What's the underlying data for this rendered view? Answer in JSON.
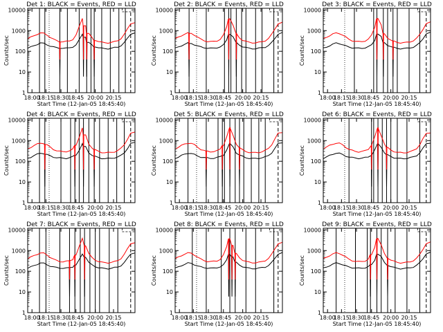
{
  "chart_data": {
    "type": "line",
    "layout_grid": "3x3",
    "x_ticks": [
      "18:00",
      "18:15",
      "18:30",
      "18:45",
      "20:00",
      "20:15"
    ],
    "y_ticks": [
      "1",
      "10",
      "100",
      "1000",
      "10000"
    ],
    "y_scale": "log",
    "ylim": [
      1,
      12000
    ],
    "xlim": [
      0,
      1
    ],
    "ylabel": "Counts/sec",
    "xlabel": "Start Time (12-Jan-05 18:45:40)",
    "series_colors": {
      "events": "#000000",
      "lld": "#ff0000"
    },
    "x_points": [
      0.0,
      0.03,
      0.06,
      0.09,
      0.12,
      0.15,
      0.18,
      0.21,
      0.24,
      0.27,
      0.3,
      0.33,
      0.36,
      0.39,
      0.42,
      0.45,
      0.48,
      0.51,
      0.54,
      0.57,
      0.6,
      0.63,
      0.66,
      0.69,
      0.72,
      0.75,
      0.78,
      0.81,
      0.84,
      0.87,
      0.9,
      0.93,
      0.96,
      1.0
    ],
    "red_base": [
      400,
      480,
      580,
      680,
      760,
      740,
      620,
      480,
      380,
      330,
      300,
      290,
      300,
      320,
      380,
      600,
      1500,
      4000,
      1800,
      700,
      450,
      350,
      300,
      270,
      260,
      260,
      270,
      290,
      330,
      420,
      650,
      1200,
      2200,
      2500
    ],
    "black_base": [
      140,
      160,
      190,
      220,
      250,
      240,
      210,
      180,
      160,
      150,
      145,
      140,
      140,
      150,
      165,
      200,
      350,
      700,
      500,
      260,
      200,
      170,
      150,
      140,
      135,
      135,
      140,
      150,
      160,
      190,
      260,
      420,
      700,
      800
    ],
    "panels": [
      {
        "title": "Det 1: BLACK = Events, RED = LLD",
        "vlines": [
          0.11,
          0.16,
          0.3,
          0.37,
          0.48,
          0.55,
          0.59,
          0.62,
          0.69,
          0.77,
          0.85,
          0.91
        ],
        "dips": [
          0.3,
          0.52,
          0.55,
          0.62
        ]
      },
      {
        "title": "Det 2: BLACK = Events, RED = LLD",
        "vlines": [
          0.13,
          0.29,
          0.46,
          0.5,
          0.52,
          0.57,
          0.62,
          0.66,
          0.75,
          0.81,
          0.92
        ],
        "dips": [
          0.13,
          0.5,
          0.57
        ]
      },
      {
        "title": "Det 3: BLACK = Events, RED = LLD",
        "vlines": [
          0.29,
          0.47,
          0.5,
          0.56,
          0.6,
          0.65,
          0.69,
          0.8,
          0.9
        ],
        "dips": [
          0.5,
          0.56,
          0.65
        ]
      },
      {
        "title": "Det 4: BLACK = Events, RED = LLD",
        "vlines": [
          0.11,
          0.16,
          0.31,
          0.4,
          0.44,
          0.48,
          0.52,
          0.57,
          0.62,
          0.67,
          0.75,
          0.83,
          0.9
        ],
        "dips": [
          0.16,
          0.44,
          0.52,
          0.62
        ]
      },
      {
        "title": "Det 5: BLACK = Events, RED = LLD",
        "vlines": [
          0.12,
          0.29,
          0.4,
          0.44,
          0.46,
          0.51,
          0.56,
          0.6,
          0.64,
          0.71,
          0.78,
          0.84
        ],
        "dips": [
          0.29,
          0.44,
          0.51,
          0.6
        ]
      },
      {
        "title": "Det 6: BLACK = Events, RED = LLD",
        "vlines": [
          0.24,
          0.45,
          0.47,
          0.51,
          0.55,
          0.59,
          0.63,
          0.69,
          0.78,
          0.9
        ],
        "dips": [
          0.45,
          0.51,
          0.59
        ]
      },
      {
        "title": "Det 7: BLACK = Events, RED = LLD",
        "vlines": [
          0.11,
          0.17,
          0.3,
          0.39,
          0.44,
          0.49,
          0.53,
          0.58,
          0.63,
          0.67,
          0.76,
          0.84
        ],
        "dips": [
          0.39,
          0.44,
          0.53
        ]
      },
      {
        "title": "Det 8: BLACK = Events, RED = LLD",
        "vlines": [
          0.16,
          0.29,
          0.43,
          0.51,
          0.56,
          0.66,
          0.75,
          0.92
        ],
        "dips": [
          0.5,
          0.53,
          0.56
        ]
      },
      {
        "title": "Det 9: BLACK = Events, RED = LLD",
        "vlines": [
          0.12,
          0.3,
          0.41,
          0.44,
          0.5,
          0.54,
          0.6,
          0.67,
          0.78,
          0.9
        ],
        "dips": [
          0.44,
          0.5,
          0.6
        ]
      }
    ]
  }
}
